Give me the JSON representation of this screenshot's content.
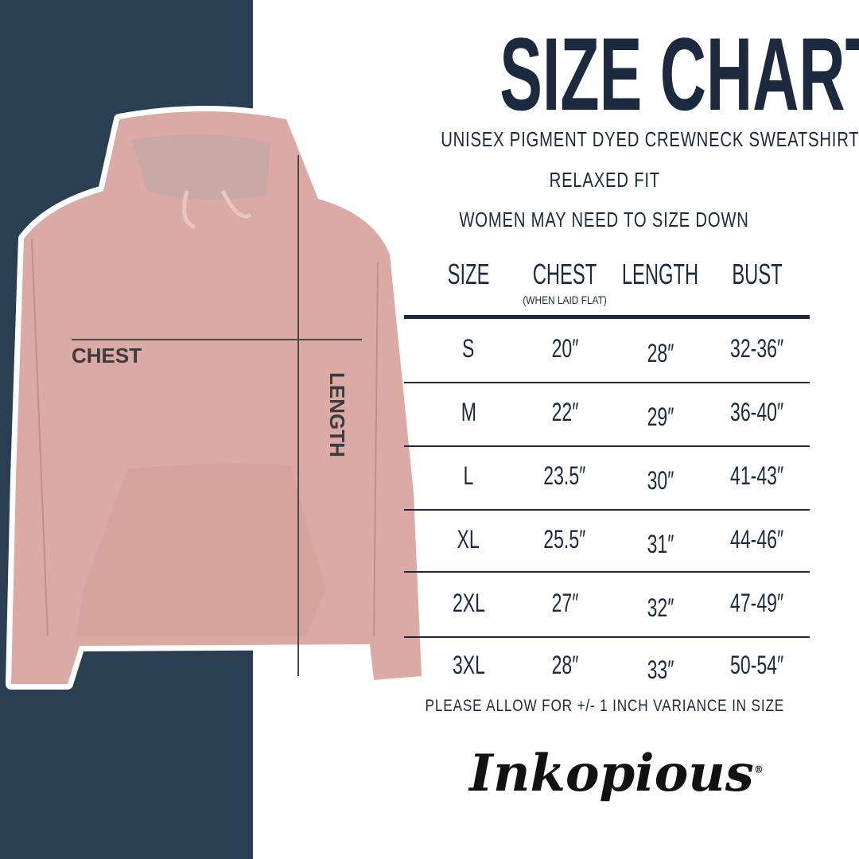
{
  "title": "SIZE CHART",
  "subtitles": [
    "UNISEX PIGMENT DYED CREWNECK SWEATSHIRT",
    "RELAXED FIT",
    "WOMEN MAY NEED TO SIZE DOWN"
  ],
  "image_labels": {
    "chest": "CHEST",
    "length": "LENGTH"
  },
  "table": {
    "headers": [
      "SIZE",
      "CHEST",
      "LENGTH",
      "BUST"
    ],
    "chest_note": "(WHEN LAID FLAT)",
    "rows": [
      [
        "S",
        "20″",
        "28″",
        "32-36″"
      ],
      [
        "M",
        "22″",
        "29″",
        "36-40″"
      ],
      [
        "L",
        "23.5″",
        "30″",
        "41-43″"
      ],
      [
        "XL",
        "25.5″",
        "31″",
        "44-46″"
      ],
      [
        "2XL",
        "27″",
        "32″",
        "47-49″"
      ],
      [
        "3XL",
        "28″",
        "33″",
        "50-54″"
      ]
    ]
  },
  "note": "PLEASE ALLOW FOR +/- 1 INCH VARIANCE IN SIZE",
  "brand": "Inkopious",
  "colors": {
    "panel": "#2b3f52",
    "text": "#1b2a3f",
    "hoodie": "#dcaaa4"
  }
}
